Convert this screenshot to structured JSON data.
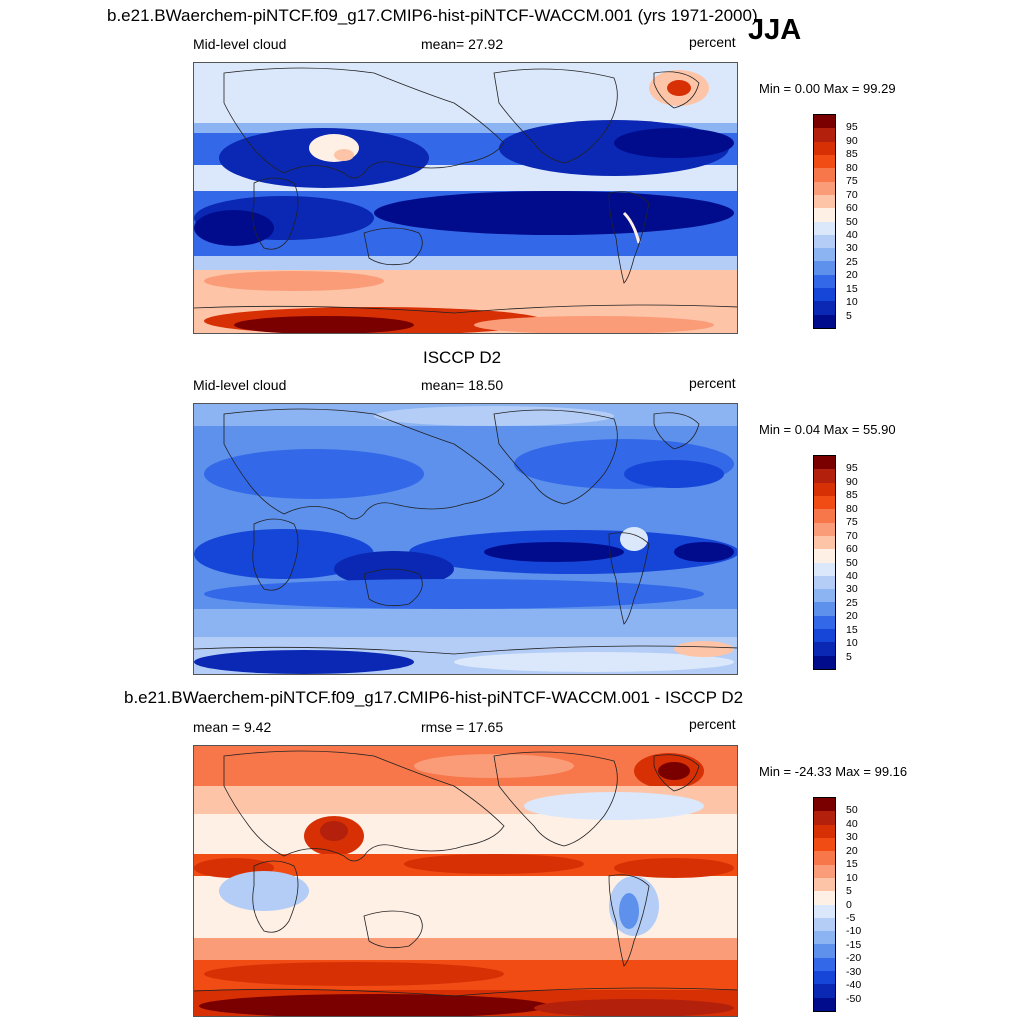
{
  "header": {
    "title": "b.e21.BWaerchem-piNTCF.f09_g17.CMIP6-hist-piNTCF-WACCM.001 (yrs 1971-2000)",
    "season": "JJA"
  },
  "panels": [
    {
      "id": "model",
      "variable": "Mid-level cloud",
      "stat": "mean=  27.92",
      "units": "percent",
      "minmax": "Min =   0.00 Max =  99.29"
    },
    {
      "id": "obs",
      "title": "ISCCP D2",
      "variable": "Mid-level cloud",
      "stat": "mean=  18.50",
      "units": "percent",
      "minmax": "Min =   0.04 Max =  55.90"
    },
    {
      "id": "diff",
      "title": "b.e21.BWaerchem-piNTCF.f09_g17.CMIP6-hist-piNTCF-WACCM.001 - ISCCP D2",
      "variable": "mean =   9.42",
      "stat": "rmse =  17.65",
      "units": "percent",
      "minmax": "Min = -24.33 Max =  99.16"
    }
  ],
  "colorbars": {
    "abs": {
      "labels": [
        "95",
        "90",
        "85",
        "80",
        "75",
        "70",
        "60",
        "50",
        "40",
        "30",
        "25",
        "20",
        "15",
        "10",
        "5"
      ],
      "colors": [
        "#7a0000",
        "#b3200c",
        "#d73005",
        "#f04c14",
        "#f7764a",
        "#fb9c78",
        "#fdc4a8",
        "#fff0e6",
        "#dbe8fb",
        "#b3cdf7",
        "#8cb3f2",
        "#5d91ec",
        "#3369e8",
        "#1646d8",
        "#0a28b4",
        "#000c8c"
      ]
    },
    "diff": {
      "labels": [
        "50",
        "40",
        "30",
        "20",
        "15",
        "10",
        "5",
        "0",
        "-5",
        "-10",
        "-15",
        "-20",
        "-30",
        "-40",
        "-50"
      ],
      "colors": [
        "#7a0000",
        "#b3200c",
        "#d73005",
        "#f04c14",
        "#f7764a",
        "#fb9c78",
        "#fdc4a8",
        "#fff0e6",
        "#dbe8fb",
        "#b3cdf7",
        "#8cb3f2",
        "#5d91ec",
        "#3369e8",
        "#1646d8",
        "#0a28b4",
        "#000c8c"
      ]
    }
  }
}
